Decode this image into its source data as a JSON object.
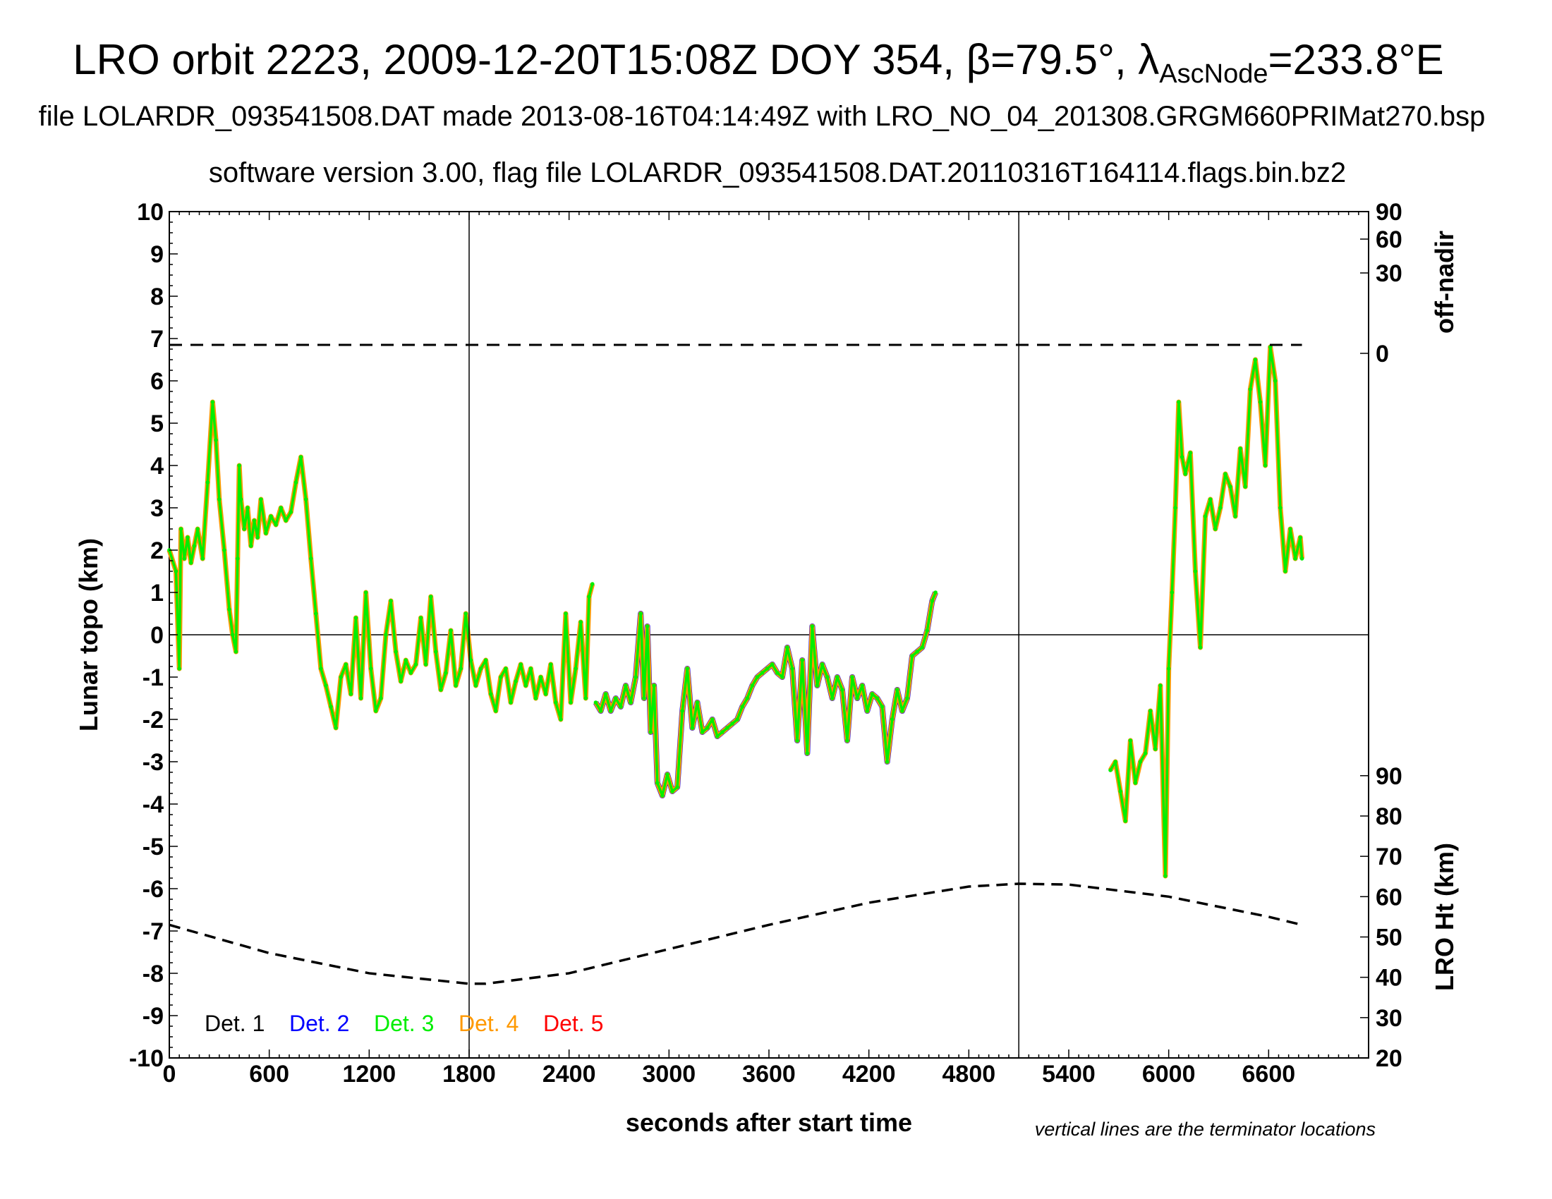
{
  "chart_data": {
    "type": "scatter",
    "title": {
      "main": "LRO orbit 2223, 2009-12-20T15:08Z DOY 354, β=79.5°, λ",
      "sub": "AscNode",
      "tail": "=233.8°E"
    },
    "subtitle1": "file LOLARDR_093541508.DAT made 2013-08-16T04:14:49Z with LRO_NO_04_201308.GRGM660PRIMat270.bsp",
    "subtitle2": "software version 3.00, flag file LOLARDR_093541508.DAT.20110316T164114.flags.bin.bz2",
    "xlabel": "seconds after start time",
    "ylabel": "Lunar topo (km)",
    "y2label_top": "off-nadir",
    "y2label_bottom": "LRO Ht (km)",
    "note": "vertical lines are the terminator locations",
    "xlim": [
      0,
      7200
    ],
    "ylim": [
      -10,
      10
    ],
    "x_ticks": [
      0,
      600,
      1200,
      1800,
      2400,
      3000,
      3600,
      4200,
      4800,
      5400,
      6000,
      6600
    ],
    "x_tick_labels": [
      "0",
      "600",
      "1200",
      "1800",
      "2400",
      "3000",
      "3600",
      "4200",
      "4800",
      "5400",
      "6000",
      "6600"
    ],
    "y_ticks": [
      10,
      9,
      8,
      7,
      6,
      5,
      4,
      3,
      2,
      1,
      0,
      -1,
      -2,
      -3,
      -4,
      -5,
      -6,
      -7,
      -8,
      -9,
      -10
    ],
    "y_tick_labels": [
      "10",
      "9",
      "8",
      "7",
      "6",
      "5",
      "4",
      "3",
      "2",
      "1",
      "0",
      "-1",
      "-2",
      "-3",
      "-4",
      "-5",
      "-6",
      "-7",
      "-8",
      "-9",
      "-10"
    ],
    "offnadir_ticks": [
      {
        "label": "90",
        "topo": 10.0
      },
      {
        "label": "60",
        "topo": 9.35
      },
      {
        "label": "30",
        "topo": 8.55
      },
      {
        "label": "0",
        "topo": 6.65
      }
    ],
    "height_axis": {
      "range": [
        20,
        90
      ],
      "ticks": [
        90,
        80,
        70,
        60,
        50,
        40,
        30,
        20
      ],
      "tick_labels": [
        "90",
        "80",
        "70",
        "60",
        "50",
        "40",
        "30",
        "20"
      ],
      "topo_at_min": -10,
      "topo_at_max": -3.33
    },
    "terminators": [
      1800,
      5100
    ],
    "offnadir_line": {
      "topo": 6.85,
      "x": [
        0,
        6800
      ]
    },
    "lro_height": {
      "unit": "km",
      "x": [
        0,
        600,
        1200,
        1800,
        1900,
        2400,
        3000,
        3600,
        4200,
        4800,
        5100,
        5400,
        6000,
        6600,
        6800
      ],
      "y": [
        53,
        46,
        41,
        38.4,
        38.4,
        41,
        47,
        53,
        58.5,
        62.5,
        63.2,
        63,
        60,
        55,
        53
      ]
    },
    "legend": {
      "placement": "bottom-left",
      "entries": [
        {
          "name": "Det. 1",
          "color": "#000000"
        },
        {
          "name": "Det. 2",
          "color": "#0000ff"
        },
        {
          "name": "Det. 3",
          "color": "#00ee00"
        },
        {
          "name": "Det. 4",
          "color": "#ff9900"
        },
        {
          "name": "Det. 5",
          "color": "#ff0000"
        }
      ]
    },
    "colors": {
      "det3": "#00ee00",
      "det4": "#ff9900",
      "det2": "#0000ff",
      "det5": "#ff0000"
    },
    "topography_segments": [
      {
        "x": [
          0,
          40,
          60,
          70,
          90,
          110,
          130,
          150,
          170,
          200,
          230,
          260,
          280,
          300,
          330,
          360,
          380,
          400,
          410,
          420,
          430,
          450,
          470,
          490,
          510,
          530,
          550,
          580,
          610,
          640,
          670,
          700,
          730,
          760,
          790,
          820,
          850,
          880,
          910,
          940,
          970,
          1000,
          1030,
          1060,
          1090,
          1120,
          1150,
          1180,
          1210,
          1240,
          1270,
          1300,
          1330,
          1360,
          1390,
          1420,
          1450,
          1480,
          1510,
          1540,
          1570,
          1600,
          1630,
          1660,
          1690,
          1720,
          1750,
          1780,
          1810,
          1840,
          1870,
          1900,
          1930,
          1960,
          1990,
          2020,
          2050,
          2080,
          2110,
          2140,
          2170,
          2200,
          2230,
          2260,
          2290,
          2320,
          2350,
          2380,
          2410,
          2440,
          2470,
          2500,
          2520,
          2540
        ],
        "y": [
          2.0,
          1.5,
          -0.8,
          2.5,
          1.8,
          2.3,
          1.7,
          2.1,
          2.5,
          1.8,
          3.6,
          5.5,
          4.6,
          3.2,
          2.0,
          0.6,
          0.0,
          -0.4,
          1.8,
          4.0,
          3.2,
          2.5,
          3.0,
          2.1,
          2.7,
          2.3,
          3.2,
          2.4,
          2.8,
          2.6,
          3.0,
          2.7,
          2.9,
          3.6,
          4.2,
          3.2,
          1.8,
          0.5,
          -0.8,
          -1.2,
          -1.7,
          -2.2,
          -1.0,
          -0.7,
          -1.4,
          0.4,
          -1.5,
          1.0,
          -0.8,
          -1.8,
          -1.5,
          0.0,
          0.8,
          -0.4,
          -1.1,
          -0.6,
          -0.9,
          -0.7,
          0.4,
          -0.7,
          0.9,
          -0.4,
          -1.3,
          -0.9,
          0.1,
          -1.2,
          -0.8,
          0.5,
          -0.6,
          -1.2,
          -0.8,
          -0.6,
          -1.4,
          -1.8,
          -1.0,
          -0.8,
          -1.6,
          -1.1,
          -0.7,
          -1.2,
          -0.8,
          -1.5,
          -1.0,
          -1.4,
          -0.7,
          -1.6,
          -2.0,
          0.5,
          -1.6,
          -0.8,
          0.3,
          -1.5,
          0.9,
          1.2
        ]
      },
      {
        "x": [
          2560,
          2590,
          2620,
          2650,
          2680,
          2710,
          2740,
          2770,
          2800,
          2830,
          2850,
          2870,
          2890,
          2910,
          2930,
          2960,
          2990,
          3020,
          3050,
          3080,
          3110,
          3140,
          3170,
          3200,
          3230,
          3260,
          3290,
          3320,
          3350,
          3380,
          3410,
          3440,
          3470,
          3500,
          3530,
          3560,
          3590,
          3620,
          3650,
          3680,
          3710,
          3740,
          3770,
          3800,
          3830,
          3860,
          3890,
          3920,
          3950,
          3980,
          4010,
          4040,
          4070,
          4100,
          4130,
          4160,
          4190,
          4220,
          4250,
          4280,
          4310,
          4340,
          4370,
          4400,
          4430,
          4460,
          4490,
          4520,
          4550,
          4580,
          4600
        ],
        "y": [
          -1.6,
          -1.8,
          -1.4,
          -1.8,
          -1.5,
          -1.7,
          -1.2,
          -1.6,
          -1.0,
          0.5,
          -1.5,
          0.2,
          -2.3,
          -1.2,
          -3.5,
          -3.8,
          -3.3,
          -3.7,
          -3.6,
          -1.8,
          -0.8,
          -2.2,
          -1.6,
          -2.3,
          -2.2,
          -2.0,
          -2.4,
          -2.3,
          -2.2,
          -2.1,
          -2.0,
          -1.7,
          -1.5,
          -1.2,
          -1.0,
          -0.9,
          -0.8,
          -0.7,
          -0.9,
          -1.0,
          -0.3,
          -0.8,
          -2.5,
          -0.6,
          -2.8,
          0.2,
          -1.2,
          -0.7,
          -1.0,
          -1.5,
          -1.0,
          -1.3,
          -2.5,
          -1.0,
          -1.5,
          -1.2,
          -1.8,
          -1.4,
          -1.5,
          -1.7,
          -3.0,
          -2.0,
          -1.3,
          -1.8,
          -1.5,
          -0.5,
          -0.4,
          -0.3,
          0.1,
          0.8,
          1.0
        ]
      },
      {
        "x": [
          5650,
          5680,
          5710,
          5740,
          5770,
          5800,
          5830,
          5860,
          5890,
          5920,
          5950,
          5980,
          6000,
          6020,
          6040,
          6060,
          6080,
          6100,
          6130,
          6160,
          6190,
          6220,
          6250,
          6280,
          6310,
          6340,
          6370,
          6400,
          6430,
          6460,
          6490,
          6520,
          6550,
          6580,
          6610,
          6640,
          6670,
          6700,
          6730,
          6760,
          6790,
          6800
        ],
        "y": [
          -3.2,
          -3.0,
          -3.7,
          -4.4,
          -2.5,
          -3.5,
          -3.0,
          -2.8,
          -1.8,
          -2.7,
          -1.2,
          -5.7,
          -0.8,
          1.0,
          3.0,
          5.5,
          4.2,
          3.8,
          4.3,
          1.5,
          -0.3,
          2.8,
          3.2,
          2.5,
          3.0,
          3.8,
          3.5,
          2.8,
          4.4,
          3.5,
          5.8,
          6.5,
          5.5,
          4.0,
          6.8,
          6.0,
          3.0,
          1.5,
          2.5,
          1.8,
          2.3,
          1.8
        ]
      }
    ]
  }
}
